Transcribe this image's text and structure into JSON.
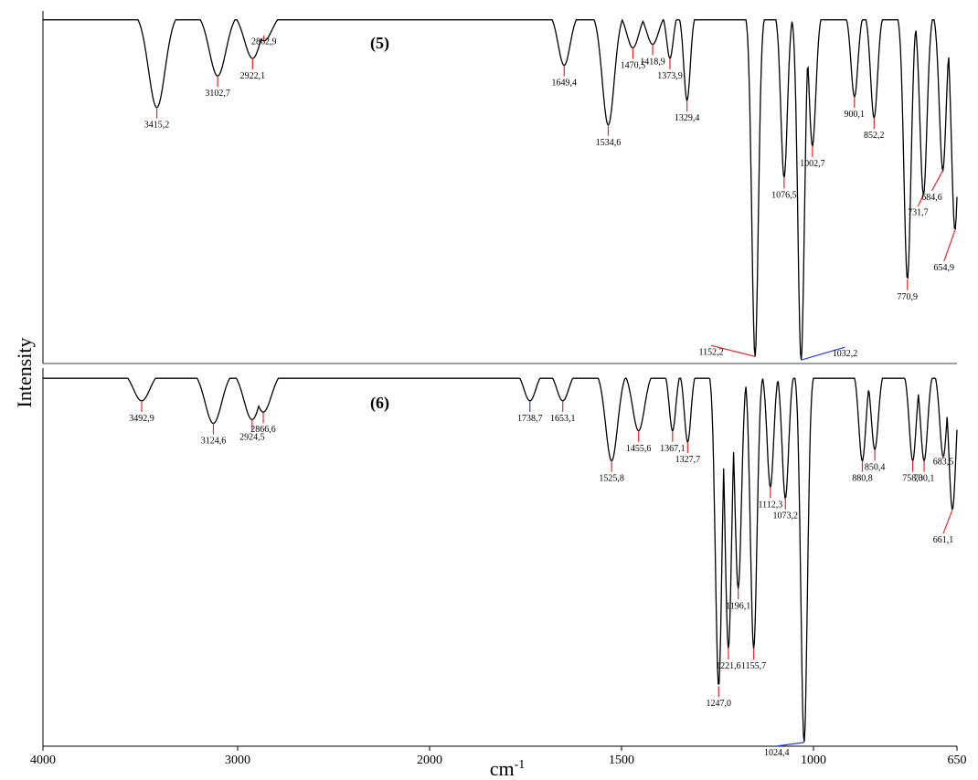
{
  "chart_data": {
    "type": "line",
    "xlabel": "cm",
    "xlabel_sup": "-1",
    "ylabel": "Intensity",
    "xlim": [
      4000,
      650
    ],
    "x_reversed": true,
    "x_ticks": [
      "4000",
      "3000",
      "2000",
      "1500",
      "1000",
      "650"
    ],
    "grid": false,
    "series": [
      {
        "name": "(5)",
        "peaks": [
          {
            "label": "3415,2",
            "wn": 3415.2,
            "y": 0.27,
            "color": "red"
          },
          {
            "label": "3102,7",
            "wn": 3102.7,
            "y": 0.18,
            "color": "red"
          },
          {
            "label": "2922,1",
            "wn": 2922.1,
            "y": 0.13,
            "color": "red"
          },
          {
            "label": "2862,9",
            "wn": 2862.9,
            "y": 0.08,
            "color": "red"
          },
          {
            "label": "1649,4",
            "wn": 1649.4,
            "y": 0.15,
            "color": "red"
          },
          {
            "label": "1534,6",
            "wn": 1534.6,
            "y": 0.32,
            "color": "red"
          },
          {
            "label": "1470,5",
            "wn": 1470.5,
            "y": 0.1,
            "color": "red"
          },
          {
            "label": "1418,9",
            "wn": 1418.9,
            "y": 0.09,
            "color": "red"
          },
          {
            "label": "1373,9",
            "wn": 1373.9,
            "y": 0.13,
            "color": "red"
          },
          {
            "label": "1329,4",
            "wn": 1329.4,
            "y": 0.25,
            "color": "red"
          },
          {
            "label": "1152,2",
            "wn": 1152.2,
            "y": 0.98,
            "color": "red"
          },
          {
            "label": "1076,5",
            "wn": 1076.5,
            "y": 0.47,
            "color": "red"
          },
          {
            "label": "1032,2",
            "wn": 1032.2,
            "y": 0.99,
            "color": "blue"
          },
          {
            "label": "1002,7",
            "wn": 1002.7,
            "y": 0.38,
            "color": "red"
          },
          {
            "label": "900,1",
            "wn": 900.1,
            "y": 0.24,
            "color": "red"
          },
          {
            "label": "852,2",
            "wn": 852.2,
            "y": 0.3,
            "color": "red"
          },
          {
            "label": "770,9",
            "wn": 770.9,
            "y": 0.76,
            "color": "red"
          },
          {
            "label": "731,7",
            "wn": 731.7,
            "y": 0.52,
            "color": "red"
          },
          {
            "label": "684,6",
            "wn": 684.6,
            "y": 0.45,
            "color": "red"
          },
          {
            "label": "654,9",
            "wn": 654.9,
            "y": 0.62,
            "color": "red"
          }
        ]
      },
      {
        "name": "(6)",
        "peaks": [
          {
            "label": "3492,9",
            "wn": 3492.9,
            "y": 0.08,
            "color": "red"
          },
          {
            "label": "3124,6",
            "wn": 3124.6,
            "y": 0.14,
            "color": "red"
          },
          {
            "label": "2924,5",
            "wn": 2924.5,
            "y": 0.13,
            "color": "red"
          },
          {
            "label": "2866,6",
            "wn": 2866.6,
            "y": 0.11,
            "color": "red"
          },
          {
            "label": "1738,7",
            "wn": 1738.7,
            "y": 0.08,
            "color": "blue"
          },
          {
            "label": "1653,1",
            "wn": 1653.1,
            "y": 0.08,
            "color": "red"
          },
          {
            "label": "1525,8",
            "wn": 1525.8,
            "y": 0.24,
            "color": "red"
          },
          {
            "label": "1455,6",
            "wn": 1455.6,
            "y": 0.16,
            "color": "red"
          },
          {
            "label": "1367,1",
            "wn": 1367.1,
            "y": 0.16,
            "color": "red"
          },
          {
            "label": "1327,7",
            "wn": 1327.7,
            "y": 0.19,
            "color": "red"
          },
          {
            "label": "1247,0",
            "wn": 1247.0,
            "y": 0.84,
            "color": "red"
          },
          {
            "label": "1221,6",
            "wn": 1221.6,
            "y": 0.74,
            "color": "red"
          },
          {
            "label": "1196,1",
            "wn": 1196.1,
            "y": 0.58,
            "color": "red"
          },
          {
            "label": "1155,7",
            "wn": 1155.7,
            "y": 0.74,
            "color": "red"
          },
          {
            "label": "1112,3",
            "wn": 1112.3,
            "y": 0.31,
            "color": "red"
          },
          {
            "label": "1073,2",
            "wn": 1073.2,
            "y": 0.34,
            "color": "red"
          },
          {
            "label": "1024,4",
            "wn": 1024.4,
            "y": 0.99,
            "color": "blue"
          },
          {
            "label": "880,8",
            "wn": 880.8,
            "y": 0.24,
            "color": "red"
          },
          {
            "label": "850,4",
            "wn": 850.4,
            "y": 0.21,
            "color": "red"
          },
          {
            "label": "758,0",
            "wn": 758.0,
            "y": 0.24,
            "color": "red"
          },
          {
            "label": "730,1",
            "wn": 730.1,
            "y": 0.24,
            "color": "red"
          },
          {
            "label": "683,5",
            "wn": 683.5,
            "y": 0.23,
            "color": "red"
          },
          {
            "label": "661,1",
            "wn": 661.1,
            "y": 0.37,
            "color": "red"
          }
        ]
      }
    ],
    "colors": {
      "line": "#000000",
      "peak_red": "#e8262a",
      "peak_blue": "#2a3fd8"
    }
  }
}
